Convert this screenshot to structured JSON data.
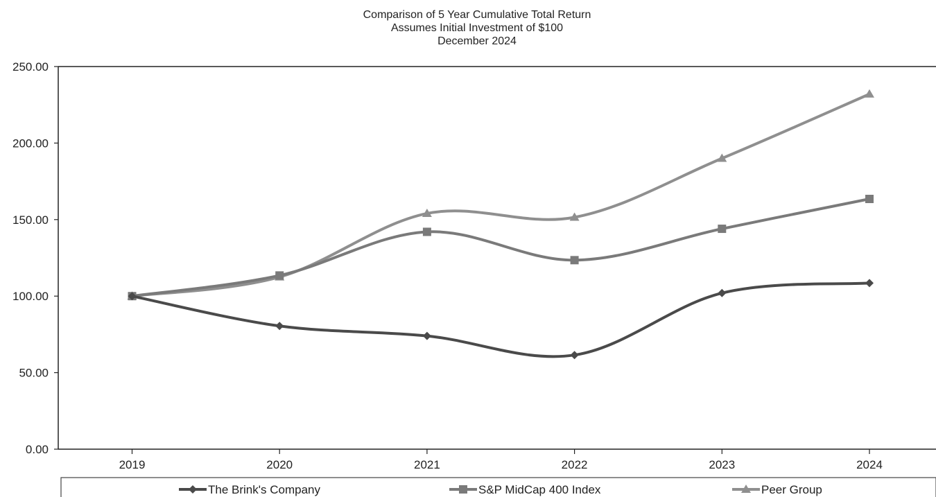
{
  "chart_data": {
    "type": "line",
    "title": "Comparison of 5 Year Cumulative Total Return",
    "subtitle_lines": [
      "Assumes Initial Investment of $100",
      "December 2024"
    ],
    "categories": [
      "2019",
      "2020",
      "2021",
      "2022",
      "2023",
      "2024"
    ],
    "ylim": [
      0,
      250
    ],
    "yticks": [
      "250.00",
      "200.00",
      "150.00",
      "100.00",
      "50.00",
      "0.00"
    ],
    "grid": false,
    "legend_position": "bottom",
    "series": [
      {
        "name": "The Brink's Company",
        "marker": "diamond",
        "color": "#4a4a4a",
        "values": [
          100,
          80.5,
          74,
          61.5,
          102,
          108.5
        ]
      },
      {
        "name": "S&P MidCap 400 Index",
        "marker": "square",
        "color": "#7a7a7a",
        "values": [
          100,
          113.5,
          142,
          123.5,
          144,
          163.5
        ]
      },
      {
        "name": "Peer Group",
        "marker": "triangle",
        "color": "#8f8f8f",
        "values": [
          100,
          112.5,
          154,
          151.5,
          190,
          232
        ]
      }
    ]
  }
}
